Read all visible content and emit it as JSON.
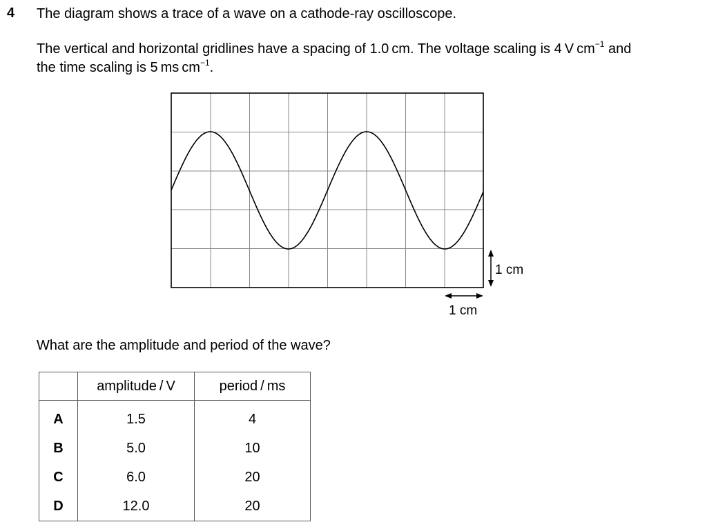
{
  "question": {
    "number": "4",
    "line1": "The diagram shows a trace of a wave on a cathode-ray oscilloscope.",
    "line2_before": "The vertical and horizontal gridlines have a spacing of 1.0 cm. The voltage scaling is 4 V cm",
    "line2_sup": "−1",
    "line2_after": " and",
    "line3_before": "the time scaling is 5 ms cm",
    "line3_sup": "−1",
    "line3_after": ".",
    "prompt": "What are the amplitude and period of the wave?"
  },
  "diagram": {
    "vertical_scale_label": "1 cm",
    "horizontal_scale_label": "1 cm"
  },
  "table": {
    "headers": [
      "",
      "amplitude / V",
      "period / ms"
    ],
    "rows": [
      {
        "option": "A",
        "amplitude": "1.5",
        "period": "4"
      },
      {
        "option": "B",
        "amplitude": "5.0",
        "period": "10"
      },
      {
        "option": "C",
        "amplitude": "6.0",
        "period": "20"
      },
      {
        "option": "D",
        "amplitude": "12.0",
        "period": "20"
      }
    ]
  }
}
